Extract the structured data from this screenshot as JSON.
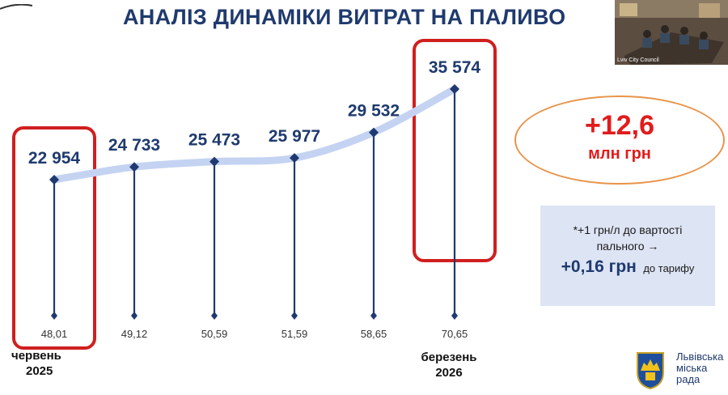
{
  "slide": {
    "title": "АНАЛІЗ ДИНАМІКИ ВИТРАТ НА ПАЛИВО"
  },
  "chart_data": {
    "type": "line",
    "categories": [
      "48,01",
      "49,12",
      "50,59",
      "51,59",
      "58,65",
      "70,65"
    ],
    "values": [
      22954,
      24733,
      25473,
      25977,
      29532,
      35574
    ],
    "value_labels": [
      "22 954",
      "24 733",
      "25 473",
      "25 977",
      "29 532",
      "35 574"
    ],
    "highlighted_indices": [
      0,
      5
    ],
    "colors": {
      "line": "#c5d3f2",
      "stem": "#1f3a6e",
      "label": "#1f3a6e",
      "highlight": "#d01f1f"
    }
  },
  "periods": {
    "start": {
      "month": "червень",
      "year": "2025"
    },
    "end": {
      "month": "березень",
      "year": "2026"
    }
  },
  "summary": {
    "value": "+12,6",
    "unit": "млн грн",
    "colors": {
      "text": "#e21b1b",
      "border": "#e8944a"
    }
  },
  "note": {
    "line1": "*+1 грн/л до вартості",
    "line2": "пального →",
    "big": "+0,16 грн",
    "small": "до тарифу",
    "background": "#dde4f4"
  },
  "logo": {
    "line1": "Львівська",
    "line2": "міська",
    "line3": "рада"
  },
  "webcam": {
    "caption": "Lviv City Council"
  }
}
